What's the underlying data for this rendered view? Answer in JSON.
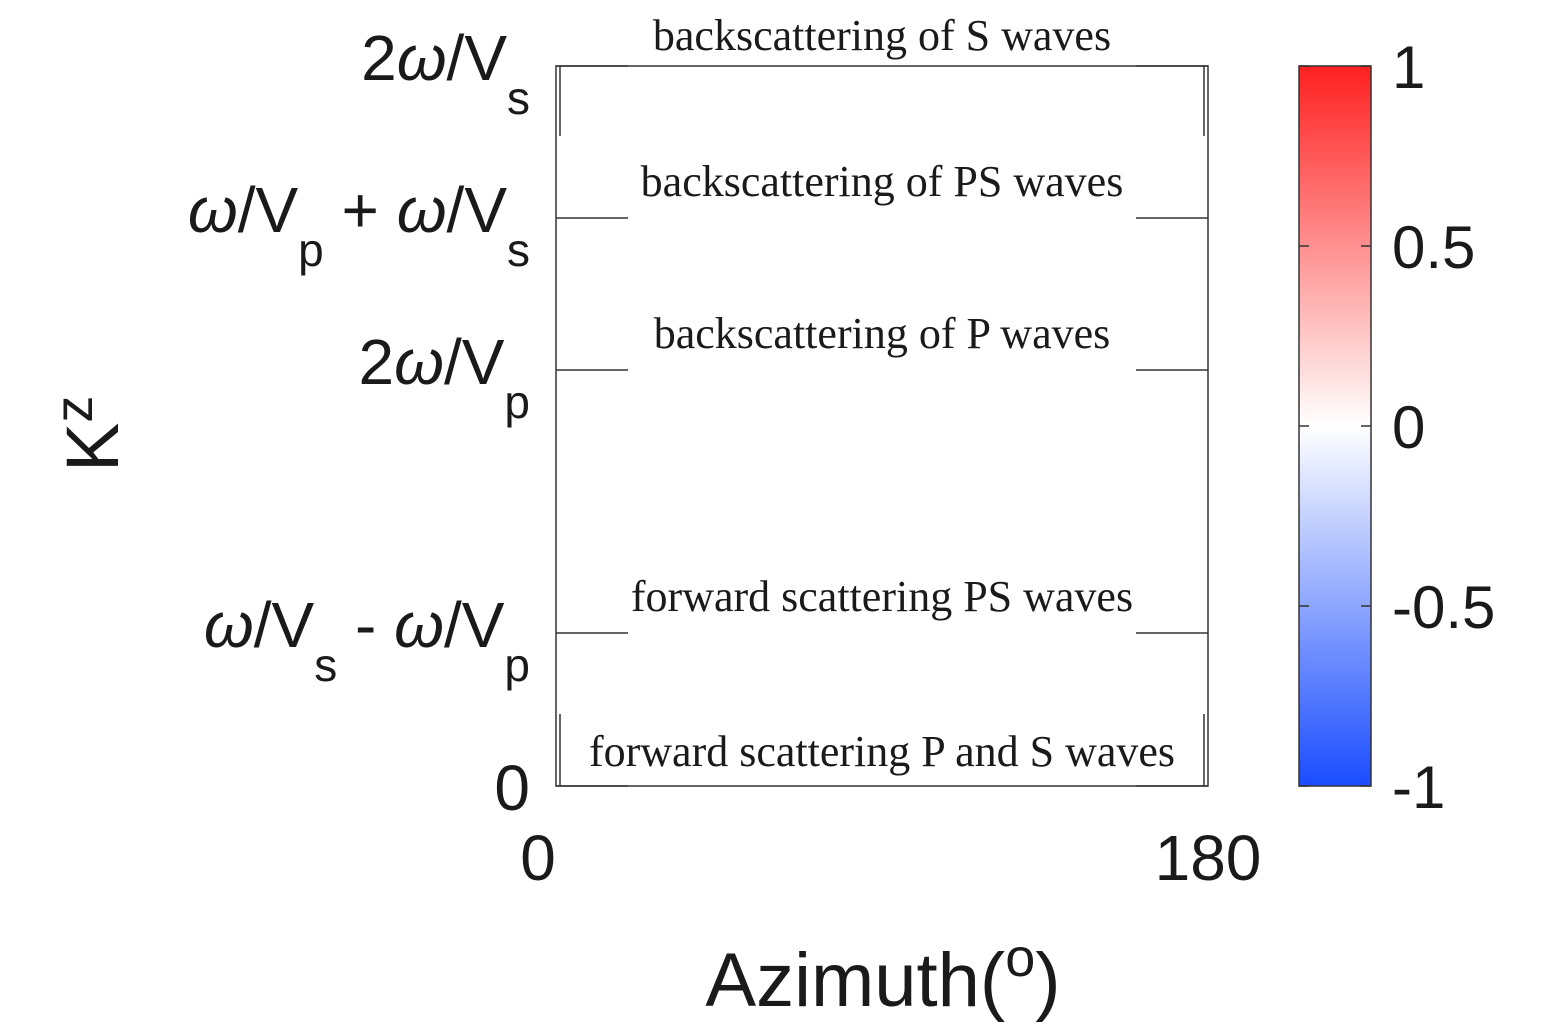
{
  "chart_data": {
    "type": "heatmap",
    "xlabel": "Azimuth(",
    "xlabel_sup": "o",
    "xlabel_close": ")",
    "ylabel": "K",
    "ylabel_sub": "z",
    "xlim": [
      0,
      180
    ],
    "x_ticks": [
      {
        "value": 0,
        "label": "0"
      },
      {
        "value": 180,
        "label": "180"
      }
    ],
    "y_ticks": [
      {
        "id": "2ws",
        "parts": [
          {
            "t": "2",
            "s": "n"
          },
          {
            "t": "ω",
            "s": "i"
          },
          {
            "t": "/V",
            "s": "n"
          },
          {
            "t": "s",
            "s": "sub"
          }
        ]
      },
      {
        "id": "wpws",
        "parts": [
          {
            "t": "ω",
            "s": "i"
          },
          {
            "t": "/V",
            "s": "n"
          },
          {
            "t": "p",
            "s": "sub"
          },
          {
            "t": " + ",
            "s": "n"
          },
          {
            "t": "ω",
            "s": "i"
          },
          {
            "t": "/V",
            "s": "n"
          },
          {
            "t": "s",
            "s": "sub"
          }
        ]
      },
      {
        "id": "2wp",
        "parts": [
          {
            "t": "2",
            "s": "n"
          },
          {
            "t": "ω",
            "s": "i"
          },
          {
            "t": "/V",
            "s": "n"
          },
          {
            "t": "p",
            "s": "sub"
          }
        ]
      },
      {
        "id": "wswp",
        "parts": [
          {
            "t": "ω",
            "s": "i"
          },
          {
            "t": "/V",
            "s": "n"
          },
          {
            "t": "s",
            "s": "sub"
          },
          {
            "t": " - ",
            "s": "n"
          },
          {
            "t": "ω",
            "s": "i"
          },
          {
            "t": "/V",
            "s": "n"
          },
          {
            "t": "p",
            "s": "sub"
          }
        ]
      },
      {
        "id": "zero",
        "parts": [
          {
            "t": "0",
            "s": "n"
          }
        ]
      }
    ],
    "annotations": [
      {
        "text": "backscattering of S waves",
        "level": "2ws"
      },
      {
        "text": "backscattering of PS waves",
        "level": "wpws"
      },
      {
        "text": "backscattering of P waves",
        "level": "2wp"
      },
      {
        "text": "forward scattering PS waves",
        "level": "wswp"
      },
      {
        "text": "forward scattering P and S waves",
        "level": "zero"
      }
    ],
    "colorbar": {
      "range": [
        -1,
        1
      ],
      "colors": [
        "#1a4cff",
        "#ffffff",
        "#ff2020"
      ],
      "ticks": [
        {
          "value": 1,
          "label": "1"
        },
        {
          "value": 0.5,
          "label": "0.5"
        },
        {
          "value": 0,
          "label": "0"
        },
        {
          "value": -0.5,
          "label": "-0.5"
        },
        {
          "value": -1,
          "label": "-1"
        }
      ]
    }
  }
}
